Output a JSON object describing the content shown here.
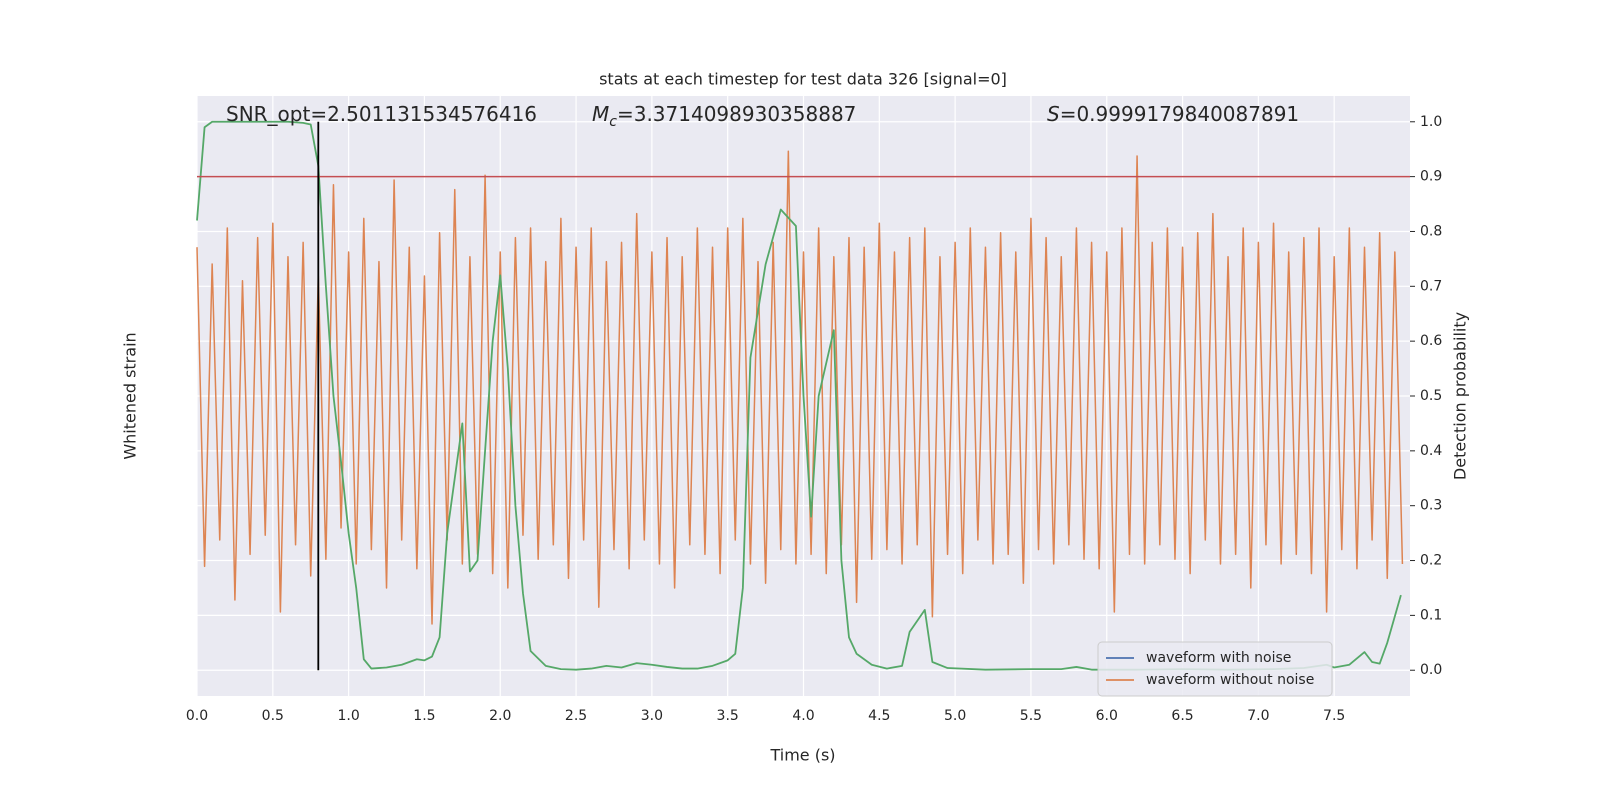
{
  "chart_data": {
    "type": "line",
    "title": "stats at each timestep for test data 326 [signal=0]",
    "xlabel": "Time (s)",
    "ylabel": "Whitened strain",
    "y2label": "Detection probability",
    "annotations": [
      {
        "text": "SNR_opt=2.501131534576416"
      },
      {
        "symbol": "M",
        "subscript": "c",
        "text": "=3.3714098930358887"
      },
      {
        "symbol": "S",
        "text": "=0.9999179840087891"
      }
    ],
    "xlim": [
      0,
      8
    ],
    "xticks": [
      {
        "value": 0,
        "label": "0.0"
      },
      0.5,
      {
        "value": 1,
        "label": "1.0"
      },
      1.5,
      {
        "value": 2,
        "label": "2.0"
      },
      2.5,
      {
        "value": 3,
        "label": "3.0"
      },
      3.5,
      {
        "value": 4,
        "label": "4.0"
      },
      4.5,
      {
        "value": 5,
        "label": "5.0"
      },
      5.5,
      {
        "value": 6,
        "label": "6.0"
      },
      6.5,
      {
        "value": 7,
        "label": "7.0"
      },
      7.5
    ],
    "ylim": [
      -1.25,
      1.25
    ],
    "y2lim": [
      -0.047,
      1.047
    ],
    "y2ticks": [
      {
        "value": 0,
        "label": "0.0"
      },
      0.1,
      0.2,
      0.3,
      0.4,
      0.5,
      0.6,
      0.7,
      0.8,
      0.9,
      {
        "value": 1,
        "label": "1.0"
      }
    ],
    "grid": true,
    "legend": "lower right",
    "threshold_y2": 0.9,
    "threshold_color": "#c44e52",
    "marker_x": 0.8,
    "marker_color": "#000000",
    "series": [
      {
        "name": "waveform with noise",
        "color": "#4c72b0"
      },
      {
        "name": "waveform without noise",
        "color": "#dd8452",
        "x": [
          0,
          0.05,
          0.1,
          0.15,
          0.2,
          0.25,
          0.3,
          0.35,
          0.4,
          0.45,
          0.5,
          0.55,
          0.6,
          0.65,
          0.7,
          0.75,
          0.8,
          0.85,
          0.9,
          0.95,
          1,
          1.05,
          1.1,
          1.15,
          1.2,
          1.25,
          1.3,
          1.35,
          1.4,
          1.45,
          1.5,
          1.55,
          1.6,
          1.65,
          1.7,
          1.75,
          1.8,
          1.85,
          1.9,
          1.95,
          2,
          2.05,
          2.1,
          2.15,
          2.2,
          2.25,
          2.3,
          2.35,
          2.4,
          2.45,
          2.5,
          2.55,
          2.6,
          2.65,
          2.7,
          2.75,
          2.8,
          2.85,
          2.9,
          2.95,
          3,
          3.05,
          3.1,
          3.15,
          3.2,
          3.25,
          3.3,
          3.35,
          3.4,
          3.45,
          3.5,
          3.55,
          3.6,
          3.65,
          3.7,
          3.75,
          3.8,
          3.85,
          3.9,
          3.95,
          4,
          4.05,
          4.1,
          4.15,
          4.2,
          4.25,
          4.3,
          4.35,
          4.4,
          4.45,
          4.5,
          4.55,
          4.6,
          4.65,
          4.7,
          4.75,
          4.8,
          4.85,
          4.9,
          4.95,
          5,
          5.05,
          5.1,
          5.15,
          5.2,
          5.25,
          5.3,
          5.35,
          5.4,
          5.45,
          5.5,
          5.55,
          5.6,
          5.65,
          5.7,
          5.75,
          5.8,
          5.85,
          5.9,
          5.95,
          6,
          6.05,
          6.1,
          6.15,
          6.2,
          6.25,
          6.3,
          6.35,
          6.4,
          6.45,
          6.5,
          6.55,
          6.6,
          6.65,
          6.7,
          6.75,
          6.8,
          6.85,
          6.9,
          6.95,
          7,
          7.05,
          7.1,
          7.15,
          7.2,
          7.25,
          7.3,
          7.35,
          7.4,
          7.45,
          7.5,
          7.55,
          7.6,
          7.65,
          7.7,
          7.75,
          7.8,
          7.85,
          7.9,
          7.95
        ],
        "values": [
          0.62,
          -0.71,
          0.55,
          -0.6,
          0.7,
          -0.85,
          0.48,
          -0.66,
          0.66,
          -0.58,
          0.72,
          -0.9,
          0.58,
          -0.62,
          0.64,
          -0.75,
          0.5,
          -0.68,
          0.88,
          -0.55,
          0.6,
          -0.7,
          0.74,
          -0.64,
          0.56,
          -0.8,
          0.9,
          -0.6,
          0.62,
          -0.72,
          0.5,
          -0.95,
          0.68,
          -0.6,
          0.86,
          -0.7,
          0.58,
          -0.66,
          0.92,
          -0.74,
          0.6,
          -0.8,
          0.66,
          -0.58,
          0.7,
          -0.68,
          0.56,
          -0.62,
          0.74,
          -0.76,
          0.62,
          -0.6,
          0.7,
          -0.88,
          0.56,
          -0.64,
          0.64,
          -0.72,
          0.76,
          -0.6,
          0.6,
          -0.7,
          0.66,
          -0.8,
          0.58,
          -0.62,
          0.7,
          -0.66,
          0.62,
          -0.74,
          0.7,
          -0.6,
          0.74,
          -0.7,
          0.56,
          -0.78,
          0.64,
          -0.64,
          1.02,
          -0.7,
          0.6,
          -0.66,
          0.7,
          -0.74,
          0.58,
          -0.62,
          0.66,
          -0.86,
          0.62,
          -0.68,
          0.72,
          -0.64,
          0.6,
          -0.7,
          0.66,
          -0.62,
          0.7,
          -0.92,
          0.58,
          -0.66,
          0.64,
          -0.74,
          0.7,
          -0.6,
          0.62,
          -0.7,
          0.68,
          -0.66,
          0.6,
          -0.78,
          0.74,
          -0.64,
          0.66,
          -0.7,
          0.58,
          -0.62,
          0.7,
          -0.68,
          0.64,
          -0.72,
          0.6,
          -0.9,
          0.7,
          -0.66,
          1.0,
          -0.7,
          0.64,
          -0.62,
          0.7,
          -0.68,
          0.62,
          -0.74,
          0.68,
          -0.6,
          0.76,
          -0.7,
          0.58,
          -0.66,
          0.7,
          -0.8,
          0.64,
          -0.62,
          0.72,
          -0.7,
          0.6,
          -0.66,
          0.66,
          -0.74,
          0.7,
          -0.9,
          0.58,
          -0.64,
          0.7,
          -0.72,
          0.62,
          -0.6,
          0.68,
          -0.76,
          0.6,
          -0.7
        ]
      },
      {
        "color": "#55a868",
        "axis": "y2",
        "x": [
          0,
          0.05,
          0.1,
          0.2,
          0.3,
          0.4,
          0.5,
          0.6,
          0.7,
          0.75,
          0.8,
          0.85,
          0.9,
          0.95,
          1.0,
          1.05,
          1.1,
          1.15,
          1.25,
          1.35,
          1.45,
          1.5,
          1.55,
          1.6,
          1.65,
          1.7,
          1.75,
          1.8,
          1.85,
          1.95,
          2.0,
          2.05,
          2.1,
          2.15,
          2.2,
          2.3,
          2.4,
          2.5,
          2.6,
          2.7,
          2.8,
          2.9,
          3.0,
          3.1,
          3.2,
          3.3,
          3.4,
          3.5,
          3.55,
          3.6,
          3.65,
          3.75,
          3.85,
          3.95,
          4.0,
          4.05,
          4.1,
          4.2,
          4.25,
          4.3,
          4.35,
          4.45,
          4.55,
          4.65,
          4.7,
          4.8,
          4.85,
          4.95,
          5.2,
          5.5,
          5.7,
          5.8,
          5.9,
          6.2,
          6.5,
          6.8,
          7.1,
          7.3,
          7.45,
          7.5,
          7.6,
          7.7,
          7.75,
          7.8,
          7.85,
          7.94
        ],
        "values": [
          0.82,
          0.99,
          1.0,
          1.0,
          1.0,
          1.0,
          1.0,
          1.0,
          0.998,
          0.995,
          0.92,
          0.7,
          0.5,
          0.38,
          0.25,
          0.15,
          0.02,
          0.003,
          0.005,
          0.01,
          0.02,
          0.018,
          0.025,
          0.06,
          0.25,
          0.35,
          0.45,
          0.18,
          0.2,
          0.6,
          0.72,
          0.55,
          0.3,
          0.14,
          0.035,
          0.008,
          0.002,
          0.001,
          0.003,
          0.008,
          0.005,
          0.013,
          0.01,
          0.006,
          0.003,
          0.003,
          0.008,
          0.018,
          0.03,
          0.15,
          0.57,
          0.74,
          0.84,
          0.81,
          0.5,
          0.28,
          0.5,
          0.62,
          0.2,
          0.06,
          0.03,
          0.01,
          0.003,
          0.008,
          0.07,
          0.11,
          0.015,
          0.004,
          0.001,
          0.002,
          0.002,
          0.006,
          0.001,
          0.001,
          0.002,
          0.001,
          0.002,
          0.004,
          0.01,
          0.005,
          0.01,
          0.033,
          0.015,
          0.012,
          0.05,
          0.137
        ]
      }
    ]
  }
}
